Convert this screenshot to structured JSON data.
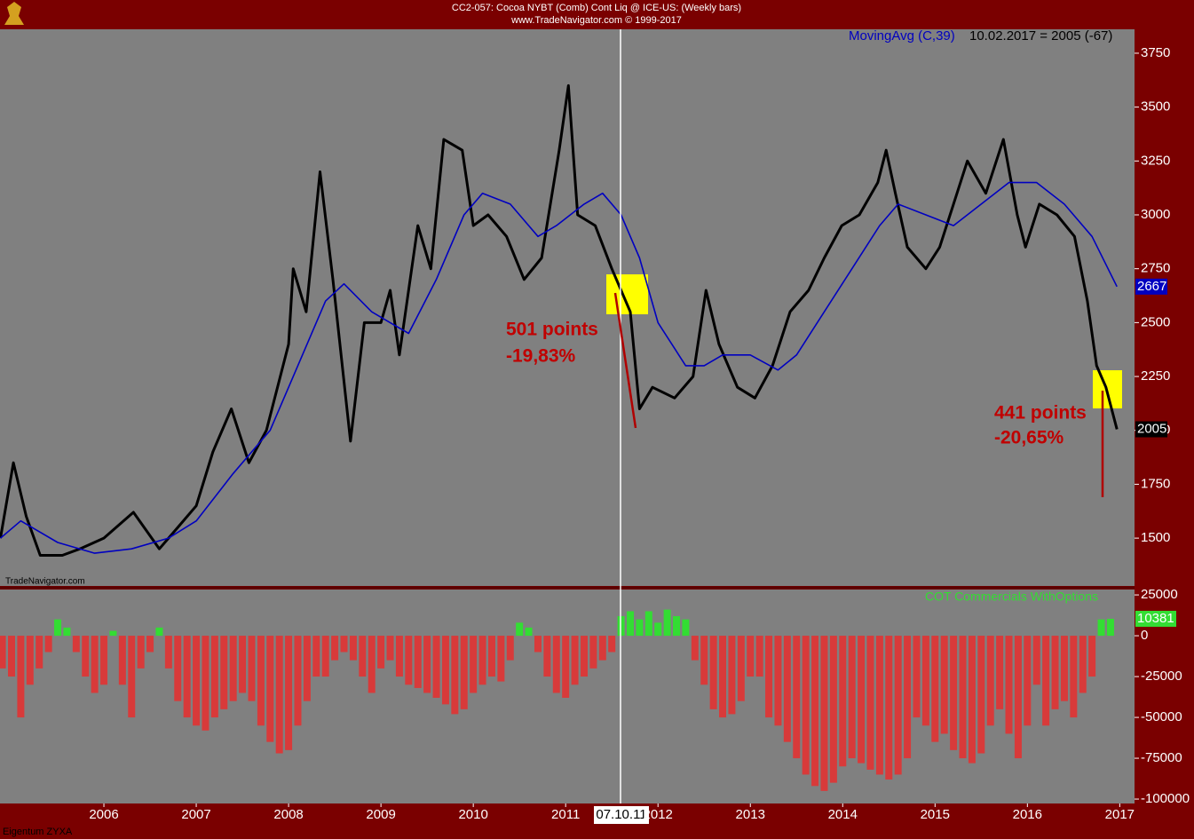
{
  "chart_data": [
    {
      "type": "line",
      "title": "CC2-057: Cocoa NYBT (Comb) Cont Liq @ ICE-US: (Weekly bars)",
      "subtitle": "www.TradeNavigator.com © 1999-2017",
      "readout": "10.02.2017 = 2005 (-67)",
      "watermark": "TradeNavigator.com",
      "annotations": [
        "501 points",
        "-19,83%",
        "441 points",
        "-20,65%"
      ],
      "xlim": [
        2004.875,
        2017.16
      ],
      "ylim": [
        1278,
        3861
      ],
      "yticks": [
        1500,
        1750,
        2000,
        2250,
        2500,
        2750,
        3000,
        3250,
        3500,
        3750
      ],
      "series": [
        {
          "color": "#000000",
          "x": [
            2004.88,
            2005.02,
            2005.16,
            2005.31,
            2005.55,
            2005.74,
            2006.0,
            2006.32,
            2006.6,
            2006.8,
            2007.0,
            2007.18,
            2007.38,
            2007.57,
            2007.76,
            2008.0,
            2008.05,
            2008.19,
            2008.34,
            2008.48,
            2008.67,
            2008.82,
            2009.0,
            2009.1,
            2009.2,
            2009.4,
            2009.54,
            2009.68,
            2009.88,
            2010.0,
            2010.16,
            2010.36,
            2010.55,
            2010.74,
            2010.93,
            2011.03,
            2011.13,
            2011.32,
            2011.5,
            2011.7,
            2011.8,
            2011.94,
            2012.18,
            2012.38,
            2012.52,
            2012.66,
            2012.86,
            2013.05,
            2013.24,
            2013.43,
            2013.63,
            2013.8,
            2013.99,
            2014.18,
            2014.38,
            2014.47,
            2014.57,
            2014.7,
            2014.9,
            2015.05,
            2015.2,
            2015.35,
            2015.55,
            2015.74,
            2015.89,
            2015.98,
            2016.13,
            2016.32,
            2016.51,
            2016.65,
            2016.75,
            2016.85,
            2016.97
          ],
          "values": [
            1500,
            1850,
            1600,
            1420,
            1420,
            1450,
            1500,
            1620,
            1450,
            1550,
            1650,
            1900,
            2100,
            1850,
            2000,
            2400,
            2750,
            2550,
            3200,
            2700,
            1950,
            2500,
            2500,
            2650,
            2350,
            2950,
            2750,
            3350,
            3300,
            2950,
            3000,
            2900,
            2700,
            2800,
            3300,
            3600,
            3000,
            2950,
            2750,
            2550,
            2100,
            2200,
            2150,
            2250,
            2650,
            2400,
            2200,
            2150,
            2300,
            2550,
            2650,
            2800,
            2950,
            3000,
            3150,
            3300,
            3100,
            2850,
            2750,
            2850,
            3050,
            3250,
            3100,
            3350,
            3000,
            2850,
            3050,
            3000,
            2900,
            2600,
            2300,
            2200,
            2005
          ]
        },
        {
          "name": "MovingAvg (C,39)",
          "color": "#0000c0",
          "x": [
            2004.88,
            2005.1,
            2005.5,
            2005.9,
            2006.3,
            2006.7,
            2007.0,
            2007.4,
            2007.8,
            2008.1,
            2008.4,
            2008.6,
            2008.9,
            2009.1,
            2009.3,
            2009.6,
            2009.9,
            2010.1,
            2010.4,
            2010.7,
            2010.9,
            2011.2,
            2011.4,
            2011.6,
            2011.8,
            2012.0,
            2012.3,
            2012.5,
            2012.7,
            2013.0,
            2013.3,
            2013.5,
            2013.8,
            2014.1,
            2014.4,
            2014.6,
            2014.9,
            2015.2,
            2015.5,
            2015.8,
            2016.1,
            2016.4,
            2016.7,
            2016.97
          ],
          "values": [
            1500,
            1580,
            1480,
            1430,
            1450,
            1500,
            1580,
            1800,
            2000,
            2300,
            2600,
            2680,
            2550,
            2500,
            2450,
            2700,
            3000,
            3100,
            3050,
            2900,
            2950,
            3050,
            3100,
            3000,
            2800,
            2500,
            2300,
            2300,
            2350,
            2350,
            2280,
            2350,
            2550,
            2750,
            2950,
            3050,
            3000,
            2950,
            3050,
            3150,
            3150,
            3050,
            2900,
            2667
          ]
        }
      ]
    },
    {
      "type": "bar",
      "cursor_label": "07.10.11",
      "footer": "Eigentum ZYXA",
      "xlim": [
        2004.875,
        2017.16
      ],
      "xticks": [
        2006,
        2007,
        2008,
        2009,
        2010,
        2011,
        2012,
        2013,
        2014,
        2015,
        2016,
        2017
      ],
      "ylim": [
        -102700,
        28300
      ],
      "yticks": [
        25000,
        0,
        -25000,
        -50000,
        -75000,
        -100000
      ],
      "colors": {
        "positive": "#33dd33",
        "negative": "#d83a3a"
      },
      "series": [
        {
          "name": "COT Commercials WithOptions",
          "x": [
            2004.9,
            2005.0,
            2005.1,
            2005.2,
            2005.3,
            2005.4,
            2005.5,
            2005.6,
            2005.7,
            2005.8,
            2005.9,
            2006.0,
            2006.1,
            2006.2,
            2006.3,
            2006.4,
            2006.5,
            2006.6,
            2006.7,
            2006.8,
            2006.9,
            2007.0,
            2007.1,
            2007.2,
            2007.3,
            2007.4,
            2007.5,
            2007.6,
            2007.7,
            2007.8,
            2007.9,
            2008.0,
            2008.1,
            2008.2,
            2008.3,
            2008.4,
            2008.5,
            2008.6,
            2008.7,
            2008.8,
            2008.9,
            2009.0,
            2009.1,
            2009.2,
            2009.3,
            2009.4,
            2009.5,
            2009.6,
            2009.7,
            2009.8,
            2009.9,
            2010.0,
            2010.1,
            2010.2,
            2010.3,
            2010.4,
            2010.5,
            2010.6,
            2010.7,
            2010.8,
            2010.9,
            2011.0,
            2011.1,
            2011.2,
            2011.3,
            2011.4,
            2011.5,
            2011.6,
            2011.7,
            2011.8,
            2011.9,
            2012.0,
            2012.1,
            2012.2,
            2012.3,
            2012.4,
            2012.5,
            2012.6,
            2012.7,
            2012.8,
            2012.9,
            2013.0,
            2013.1,
            2013.2,
            2013.3,
            2013.4,
            2013.5,
            2013.6,
            2013.7,
            2013.8,
            2013.9,
            2014.0,
            2014.1,
            2014.2,
            2014.3,
            2014.4,
            2014.5,
            2014.6,
            2014.7,
            2014.8,
            2014.9,
            2015.0,
            2015.1,
            2015.2,
            2015.3,
            2015.4,
            2015.5,
            2015.6,
            2015.7,
            2015.8,
            2015.9,
            2016.0,
            2016.1,
            2016.2,
            2016.3,
            2016.4,
            2016.5,
            2016.6,
            2016.7,
            2016.8,
            2016.9
          ],
          "values": [
            -20000,
            -25000,
            -50000,
            -30000,
            -20000,
            -10000,
            10000,
            5000,
            -10000,
            -25000,
            -35000,
            -30000,
            3000,
            -30000,
            -50000,
            -20000,
            -10000,
            5000,
            -20000,
            -40000,
            -50000,
            -55000,
            -58000,
            -50000,
            -45000,
            -40000,
            -35000,
            -40000,
            -55000,
            -65000,
            -72000,
            -70000,
            -55000,
            -40000,
            -25000,
            -25000,
            -15000,
            -10000,
            -15000,
            -25000,
            -35000,
            -20000,
            -15000,
            -25000,
            -30000,
            -32000,
            -35000,
            -38000,
            -42000,
            -48000,
            -45000,
            -35000,
            -30000,
            -25000,
            -28000,
            -15000,
            8000,
            5000,
            -10000,
            -25000,
            -35000,
            -38000,
            -30000,
            -25000,
            -20000,
            -15000,
            -10000,
            12000,
            15000,
            10000,
            15000,
            8000,
            16000,
            12000,
            10000,
            -15000,
            -30000,
            -45000,
            -50000,
            -48000,
            -40000,
            -25000,
            -25000,
            -50000,
            -55000,
            -65000,
            -75000,
            -85000,
            -92000,
            -95000,
            -90000,
            -80000,
            -75000,
            -78000,
            -82000,
            -85000,
            -88000,
            -85000,
            -75000,
            -50000,
            -55000,
            -65000,
            -60000,
            -70000,
            -75000,
            -78000,
            -72000,
            -55000,
            -45000,
            -60000,
            -75000,
            -55000,
            -30000,
            -55000,
            -45000,
            -40000,
            -50000,
            -35000,
            -25000,
            10000,
            10381
          ]
        }
      ]
    }
  ]
}
